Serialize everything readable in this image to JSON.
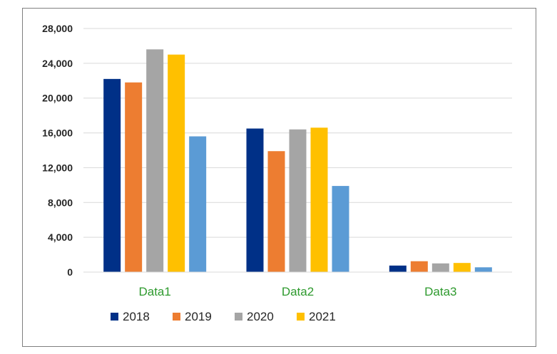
{
  "chart_data": {
    "type": "bar",
    "categories": [
      "Data1",
      "Data2",
      "Data3"
    ],
    "series": [
      {
        "name": "2018",
        "color": "#003087",
        "values": [
          22200,
          16500,
          750
        ]
      },
      {
        "name": "2019",
        "color": "#ed7d31",
        "values": [
          21800,
          13900,
          1250
        ]
      },
      {
        "name": "2020",
        "color": "#a5a5a5",
        "values": [
          25600,
          16400,
          1000
        ]
      },
      {
        "name": "2021",
        "color": "#ffc000",
        "values": [
          25000,
          16600,
          1050
        ]
      },
      {
        "name": "",
        "color": "#5b9bd5",
        "values": [
          15600,
          9900,
          550
        ]
      }
    ],
    "ylim": [
      0,
      28000
    ],
    "yticks": [
      "0",
      "4,000",
      "8,000",
      "12,000",
      "16,000",
      "20,000",
      "24,000",
      "28,000"
    ],
    "ytick_values": [
      0,
      4000,
      8000,
      12000,
      16000,
      20000,
      24000,
      28000
    ],
    "grid": true,
    "legend_position": "bottom",
    "title": "",
    "xlabel": "",
    "ylabel": ""
  }
}
